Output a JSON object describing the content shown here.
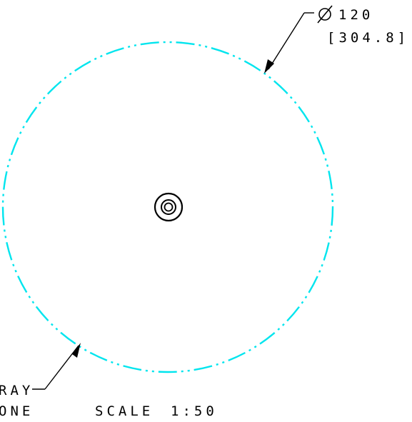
{
  "drawing": {
    "dimension": {
      "symbol": "Ø",
      "value": "120",
      "metric": "[304.8]"
    },
    "leader_note": {
      "line1": "RAY",
      "line2": "ONE"
    },
    "scale_label": "SCALE",
    "scale_value": "1:50",
    "colors": {
      "boundary_circle": "#00e5ee",
      "linework": "#000000",
      "background": "#ffffff"
    },
    "line_styles": {
      "boundary_circle": "dash-dot-dot"
    }
  }
}
